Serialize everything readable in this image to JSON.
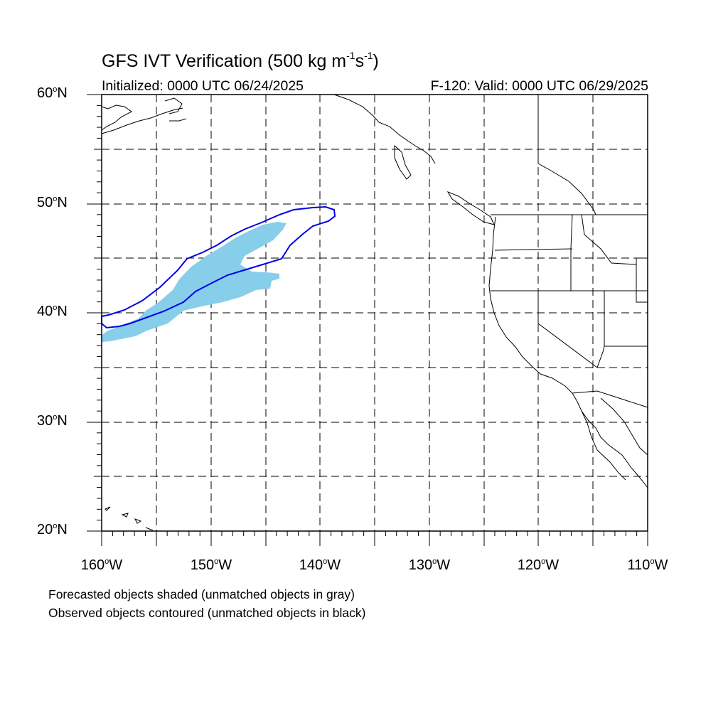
{
  "title": {
    "text": "GFS IVT Verification (500 kg m",
    "sup1": "-1",
    "mid": "s",
    "sup2": "-1",
    "end": ")"
  },
  "initialized": "Initialized: 0000 UTC 06/24/2025",
  "valid": "F-120: Valid: 0000 UTC 06/29/2025",
  "lat_labels": [
    {
      "num": "60",
      "suffix": "N"
    },
    {
      "num": "50",
      "suffix": "N"
    },
    {
      "num": "40",
      "suffix": "N"
    },
    {
      "num": "30",
      "suffix": "N"
    },
    {
      "num": "20",
      "suffix": "N"
    }
  ],
  "lon_labels": [
    {
      "num": "160",
      "suffix": "W"
    },
    {
      "num": "150",
      "suffix": "W"
    },
    {
      "num": "140",
      "suffix": "W"
    },
    {
      "num": "130",
      "suffix": "W"
    },
    {
      "num": "120",
      "suffix": "W"
    },
    {
      "num": "110",
      "suffix": "W"
    }
  ],
  "notes": {
    "forecast": "Forecasted objects shaded (unmatched objects in gray)",
    "observed": "Observed objects contoured (unmatched objects in black)"
  },
  "map_extent": {
    "lon_min": -160,
    "lon_max": -110,
    "lat_min": 20,
    "lat_max": 60
  },
  "colors": {
    "forecast_fill": "#87ceeb",
    "observed_contour": "#0000e6",
    "coastline": "#000000",
    "grid": "#000000"
  }
}
